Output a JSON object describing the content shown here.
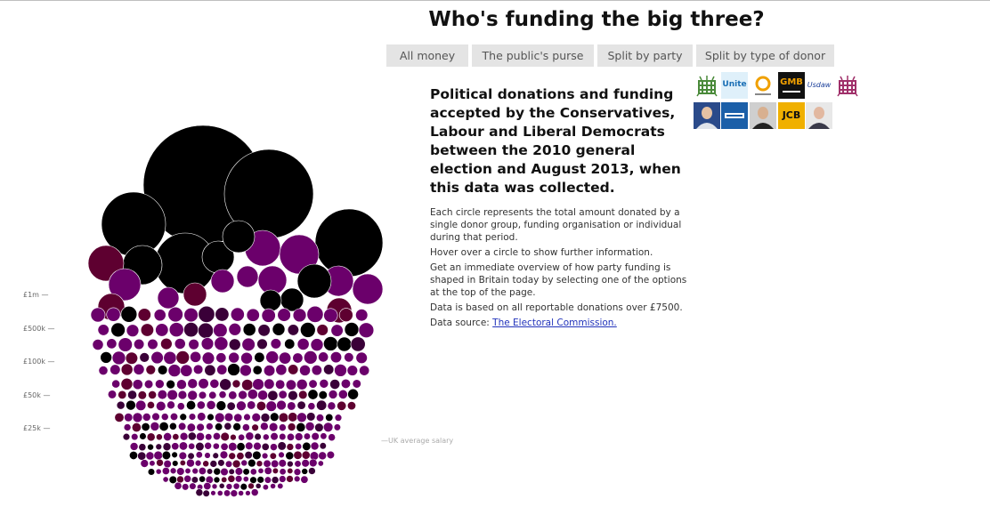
{
  "page": {
    "title": "Who's funding the big three?"
  },
  "tabs": [
    {
      "label": "All money"
    },
    {
      "label": "The public's purse"
    },
    {
      "label": "Split by party"
    },
    {
      "label": "Split by type of donor"
    }
  ],
  "intro": {
    "headline": "Political donations and funding accepted by the Conservatives, Labour and Liberal Democrats between the 2010 general election and August 2013, when this data was collected.",
    "paragraphs": [
      "Each circle represents the total amount donated by a single donor group, funding organisation or individual during that period.",
      "Hover over a circle to show further information.",
      "Get an immediate overview of how party funding is shaped in Britain today by selecting one of the options at the top of the page.",
      "Data is based on all reportable donations over £7500."
    ],
    "source_prefix": "Data source:",
    "source_link": "The Electoral Commission."
  },
  "logos": {
    "unite": "Unite",
    "gmb": "GMB",
    "usdaw": "Usdaw",
    "jcb": "JCB"
  },
  "scale": {
    "labels": [
      "£1m —",
      "£500k —",
      "£100k —",
      "£50k —",
      "£25k —"
    ],
    "salary_label": "—UK average salary"
  },
  "colors": {
    "black": "#000000",
    "purple": "#6b006b",
    "maroon": "#5e0030",
    "dark_purple": "#3a0038",
    "tab_bg": "#e4e4e4",
    "link": "#2233bb"
  }
}
